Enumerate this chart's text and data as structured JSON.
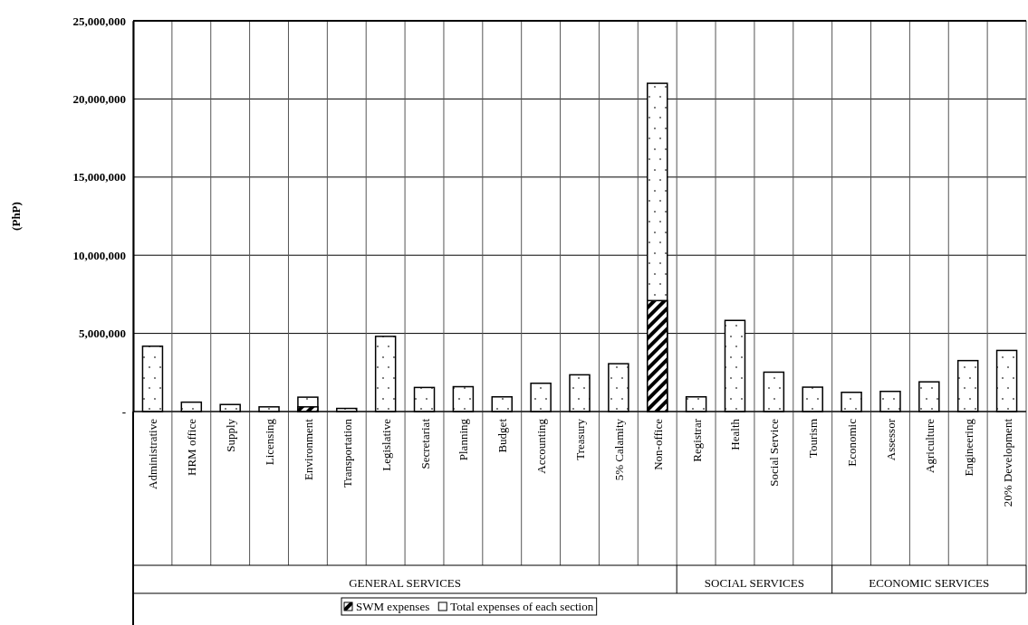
{
  "chart_data": {
    "type": "bar",
    "ylabel": "(PhP)",
    "categories": [
      "Administrative",
      "HRM office",
      "Supply",
      "Licensing",
      "Environment",
      "Transportation",
      "Legislative",
      "Secretariat",
      "Planning",
      "Budget",
      "Accounting",
      "Treasury",
      "5% Calamity",
      "Non-office",
      "Registrar",
      "Health",
      "Social Service",
      "Tourism",
      "Economic",
      "Assessor",
      "Agriculture",
      "Engineering",
      "20% Development"
    ],
    "series": [
      {
        "name": "SWM expenses",
        "color": "#000000",
        "values": [
          null,
          null,
          null,
          null,
          300000,
          null,
          null,
          null,
          null,
          null,
          null,
          null,
          null,
          7100000,
          null,
          null,
          null,
          null,
          null,
          null,
          null,
          null,
          null
        ]
      },
      {
        "name": "Total expenses of each section",
        "color": "#000000",
        "values": [
          4180000,
          600000,
          450000,
          300000,
          920000,
          200000,
          4810000,
          1540000,
          1590000,
          940000,
          1810000,
          2350000,
          3060000,
          21000000,
          940000,
          5830000,
          2520000,
          1560000,
          1230000,
          1290000,
          1900000,
          3260000,
          3910000
        ]
      }
    ],
    "ylim": [
      0,
      25000000
    ],
    "yticks": [
      {
        "value": 0,
        "label": "-"
      },
      {
        "value": 5000000,
        "label": "5,000,000"
      },
      {
        "value": 10000000,
        "label": "10,000,000"
      },
      {
        "value": 15000000,
        "label": "15,000,000"
      },
      {
        "value": 20000000,
        "label": "20,000,000"
      },
      {
        "value": 25000000,
        "label": "25,000,000"
      }
    ],
    "grid": true,
    "legend": "bottom",
    "annotations": [
      "GENERAL SERVICES",
      "SOCIAL SERVICES",
      "ECONOMIC SERVICES"
    ]
  }
}
